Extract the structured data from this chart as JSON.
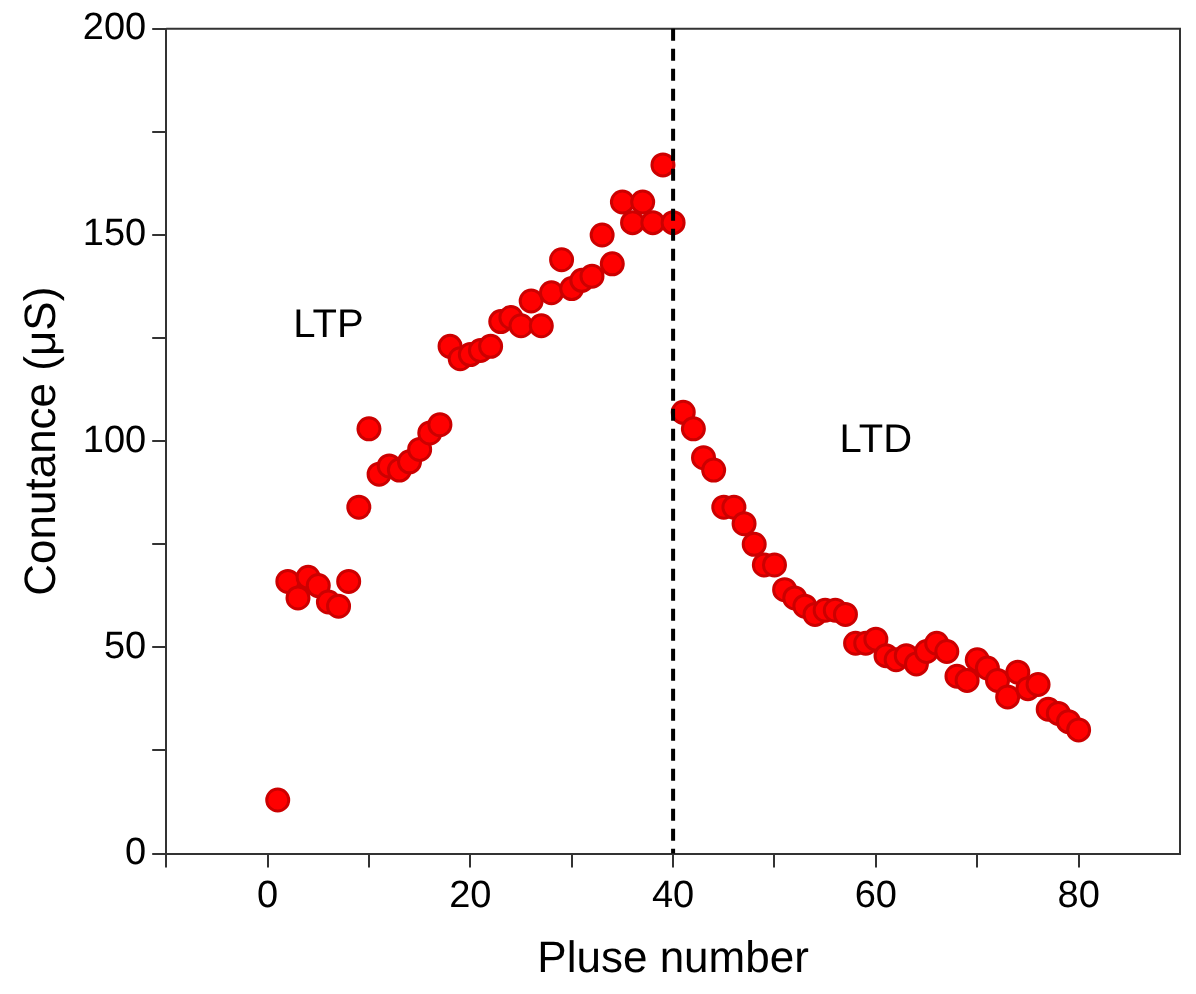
{
  "chart_data": {
    "type": "scatter",
    "xlabel": "Pluse number",
    "ylabel": "Conutance (μS)",
    "xlim": [
      -10,
      90
    ],
    "ylim": [
      0,
      200
    ],
    "xticks": [
      {
        "value": -10,
        "label": null
      },
      0,
      {
        "value": 10,
        "label": null
      },
      20,
      {
        "value": 30,
        "label": null
      },
      40,
      {
        "value": 50,
        "label": null
      },
      60,
      {
        "value": 70,
        "label": null
      },
      80
    ],
    "yticks": [
      0,
      {
        "value": 25,
        "label": null
      },
      50,
      {
        "value": 75,
        "label": null
      },
      100,
      {
        "value": 125,
        "label": null
      },
      150,
      {
        "value": 175,
        "label": null
      },
      200
    ],
    "grid": false,
    "legend": false,
    "marker": "circle",
    "x": [
      1,
      2,
      3,
      4,
      5,
      6,
      7,
      8,
      9,
      10,
      11,
      12,
      13,
      14,
      15,
      16,
      17,
      18,
      19,
      20,
      21,
      22,
      23,
      24,
      25,
      26,
      27,
      28,
      29,
      30,
      31,
      32,
      33,
      34,
      35,
      36,
      37,
      38,
      39,
      40,
      41,
      42,
      43,
      44,
      45,
      46,
      47,
      48,
      49,
      50,
      51,
      52,
      53,
      54,
      55,
      56,
      57,
      58,
      59,
      60,
      61,
      62,
      63,
      64,
      65,
      66,
      67,
      68,
      69,
      70,
      71,
      72,
      73,
      74,
      75,
      76,
      77,
      78,
      79,
      80
    ],
    "series": [
      {
        "color": "#ff0000",
        "values": [
          13,
          66,
          62,
          67,
          65,
          61,
          60,
          66,
          84,
          103,
          92,
          94,
          93,
          95,
          98,
          102,
          104,
          123,
          120,
          121,
          122,
          123,
          129,
          130,
          128,
          134,
          128,
          136,
          144,
          137,
          139,
          140,
          150,
          143,
          158,
          153,
          158,
          153,
          167,
          153,
          107,
          103,
          96,
          93,
          84,
          84,
          80,
          75,
          70,
          70,
          64,
          62,
          60,
          58,
          59,
          59,
          58,
          51,
          51,
          52,
          48,
          47,
          48,
          46,
          49,
          51,
          49,
          43,
          42,
          47,
          45,
          42,
          38,
          44,
          40,
          41,
          35,
          34,
          32,
          30
        ]
      }
    ],
    "ref_lines": [
      {
        "axis": "x",
        "value": 40,
        "color": "#000000",
        "line_style": "dashed"
      }
    ],
    "annotations": [
      "LTP",
      "LTD"
    ]
  }
}
